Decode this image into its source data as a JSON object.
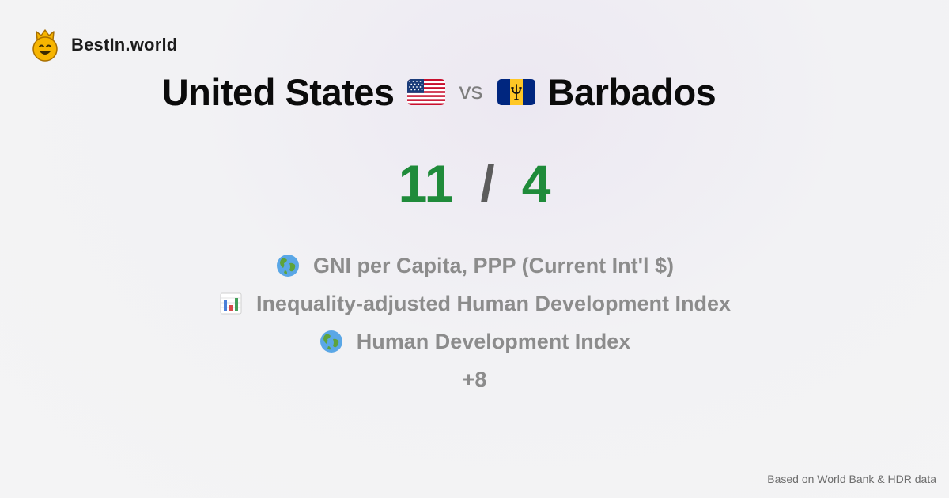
{
  "brand": {
    "name": "BestIn.world",
    "logo_icon": "crowned-smiley-icon"
  },
  "comparison": {
    "country_a": {
      "name": "United States",
      "flag_icon": "us-flag-icon",
      "score": "11"
    },
    "vs_label": "vs",
    "country_b": {
      "name": "Barbados",
      "flag_icon": "barbados-flag-icon",
      "score": "4"
    },
    "score_separator": "/"
  },
  "metrics": [
    {
      "label": "GNI per Capita, PPP (Current Int'l $)",
      "icon": "globe-icon"
    },
    {
      "label": "Inequality-adjusted Human Development Index",
      "icon": "bar-chart-icon"
    },
    {
      "label": "Human Development Index",
      "icon": "globe-icon"
    }
  ],
  "more_label": "+8",
  "footer": {
    "source": "Based on World Bank & HDR data"
  },
  "colors": {
    "score": "#1f8b3a",
    "muted": "#8c8c8c",
    "heading": "#0b0b0b"
  }
}
